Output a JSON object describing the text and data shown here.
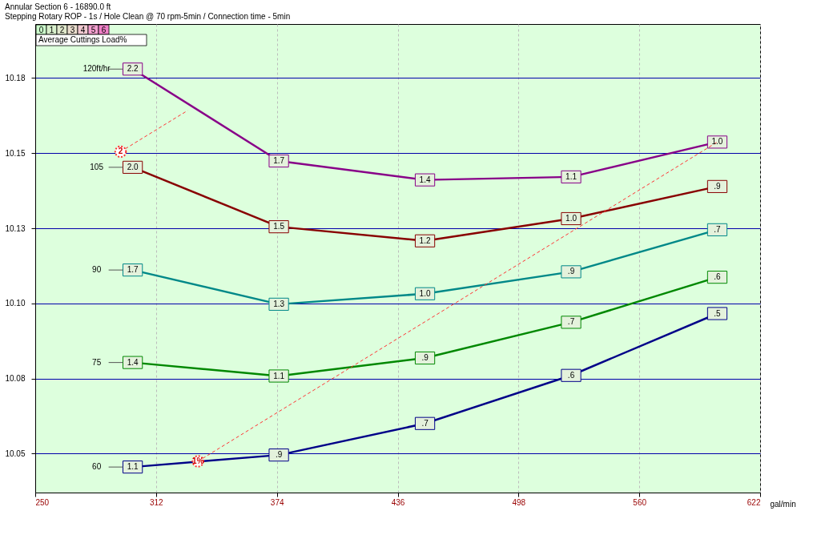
{
  "chart_data": {
    "type": "line",
    "title": "Annular Section 6 - 16890.0 ft",
    "subtitle": "Stepping Rotary ROP - 1s / Hole Clean @ 70 rpm-5min / Connection time - 5min",
    "xlabel": "gal/min",
    "legend_title": "Average Cuttings Load%",
    "x": [
      300,
      375,
      450,
      525,
      600
    ],
    "series": [
      {
        "name": "120ft/hr",
        "color": "#880088",
        "values": [
          10.178,
          10.1474,
          10.1411,
          10.1421,
          10.1537
        ]
      },
      {
        "name": "105",
        "color": "#880000",
        "values": [
          10.1453,
          10.1255,
          10.1208,
          10.1282,
          10.1389
        ]
      },
      {
        "name": "90",
        "color": "#008888",
        "values": [
          10.1111,
          10.0997,
          10.1032,
          10.1105,
          10.1245
        ]
      },
      {
        "name": "75",
        "color": "#008800",
        "values": [
          10.0803,
          10.0758,
          10.0818,
          10.0937,
          10.1087
        ]
      },
      {
        "name": "60",
        "color": "#000088",
        "values": [
          10.0455,
          10.0495,
          10.06,
          10.076,
          10.0966
        ]
      },
      {
        "color": "#ff3333",
        "x": [
          333.5,
          600
        ],
        "values": [
          10.0474,
          10.1537
        ],
        "line_style": "dashed",
        "marker": "circle"
      },
      {
        "color": "#ff3333",
        "x": [
          293.8,
          328.2
        ],
        "values": [
          10.1505,
          10.1642
        ],
        "line_style": "dashed",
        "marker": "circle"
      }
    ],
    "annotations": [
      {
        "text": "1%",
        "x": 333.5,
        "y": 10.0474
      },
      {
        "text": "2",
        "x": 293.8,
        "y": 10.1505
      },
      {
        "text": "2.2",
        "x": 300,
        "y": 10.178
      },
      {
        "text": "1.7",
        "x": 375,
        "y": 10.1474
      },
      {
        "text": "1.4",
        "x": 450,
        "y": 10.1411
      },
      {
        "text": "1.1",
        "x": 525,
        "y": 10.1421
      },
      {
        "text": "1.0",
        "x": 600,
        "y": 10.1537
      },
      {
        "text": "2.0",
        "x": 300,
        "y": 10.1453
      },
      {
        "text": "1.5",
        "x": 375,
        "y": 10.1255
      },
      {
        "text": "1.2",
        "x": 450,
        "y": 10.1208
      },
      {
        "text": "1.0",
        "x": 525,
        "y": 10.1282
      },
      {
        "text": ".9",
        "x": 600,
        "y": 10.1389
      },
      {
        "text": "1.7",
        "x": 300,
        "y": 10.1111
      },
      {
        "text": "1.3",
        "x": 375,
        "y": 10.0997
      },
      {
        "text": "1.0",
        "x": 450,
        "y": 10.1032
      },
      {
        "text": ".9",
        "x": 525,
        "y": 10.1105
      },
      {
        "text": ".7",
        "x": 600,
        "y": 10.1245
      },
      {
        "text": "1.4",
        "x": 300,
        "y": 10.0803
      },
      {
        "text": "1.1",
        "x": 375,
        "y": 10.0758
      },
      {
        "text": ".9",
        "x": 450,
        "y": 10.0818
      },
      {
        "text": ".7",
        "x": 525,
        "y": 10.0937
      },
      {
        "text": ".6",
        "x": 600,
        "y": 10.1087
      },
      {
        "text": "1.1",
        "x": 300,
        "y": 10.0455
      },
      {
        "text": ".9",
        "x": 375,
        "y": 10.0495
      },
      {
        "text": ".7",
        "x": 450,
        "y": 10.06
      },
      {
        "text": ".6",
        "x": 525,
        "y": 10.076
      },
      {
        "text": ".5",
        "x": 600,
        "y": 10.0966
      },
      "0",
      "1",
      "2",
      "3",
      "4",
      "5",
      "6"
    ],
    "xlim": [
      250,
      622
    ],
    "ylim": [
      10.037,
      10.193
    ],
    "xticks": [
      250,
      312,
      374,
      436,
      498,
      560,
      622
    ],
    "yticks": [
      {
        "value": 10.05,
        "label": "10.05"
      },
      {
        "value": 10.075,
        "label": "10.08"
      },
      {
        "value": 10.1,
        "label": "10.10"
      },
      {
        "value": 10.125,
        "label": "10.13"
      },
      {
        "value": 10.15,
        "label": "10.15"
      },
      {
        "value": 10.175,
        "label": "10.18"
      }
    ],
    "grid": true,
    "line_style": "solid",
    "marker": "square",
    "legend": "left"
  }
}
